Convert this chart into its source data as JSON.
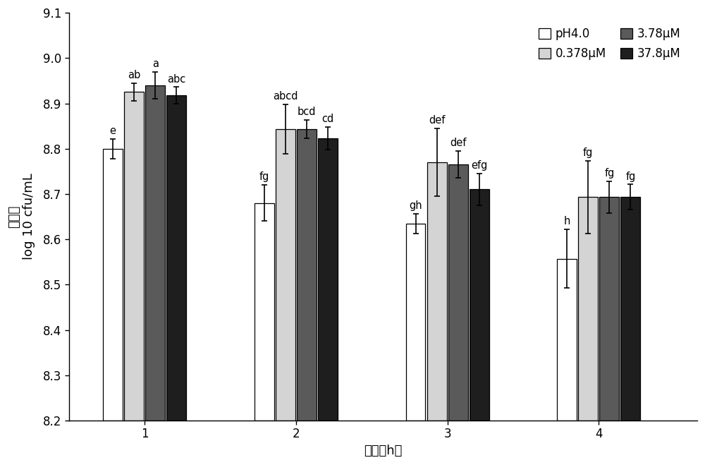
{
  "title": "",
  "xlabel": "时间（h）",
  "ylabel": "存活数\nlog 10 cfu/mL",
  "ylim": [
    8.2,
    9.1
  ],
  "yticks": [
    8.2,
    8.3,
    8.4,
    8.5,
    8.6,
    8.7,
    8.8,
    8.9,
    9.0,
    9.1
  ],
  "xtick_labels": [
    "1",
    "2",
    "3",
    "4"
  ],
  "groups": [
    "pH4.0",
    "0.378μM",
    "3.78μM",
    "37.8μM"
  ],
  "bar_colors": [
    "#ffffff",
    "#d4d4d4",
    "#5a5a5a",
    "#1e1e1e"
  ],
  "bar_edge_colors": [
    "#000000",
    "#000000",
    "#000000",
    "#000000"
  ],
  "bar_width": 0.13,
  "values": [
    [
      8.8,
      8.925,
      8.94,
      8.918
    ],
    [
      8.68,
      8.843,
      8.843,
      8.823
    ],
    [
      8.635,
      8.77,
      8.765,
      8.71
    ],
    [
      8.557,
      8.693,
      8.693,
      8.693
    ]
  ],
  "errors": [
    [
      0.022,
      0.02,
      0.03,
      0.018
    ],
    [
      0.04,
      0.055,
      0.02,
      0.025
    ],
    [
      0.022,
      0.075,
      0.03,
      0.035
    ],
    [
      0.065,
      0.08,
      0.035,
      0.028
    ]
  ],
  "annotations": [
    [
      "e",
      "ab",
      "a",
      "abc"
    ],
    [
      "fg",
      "abcd",
      "bcd",
      "cd"
    ],
    [
      "gh",
      "def",
      "def",
      "efg"
    ],
    [
      "h",
      "fg",
      "fg",
      "fg"
    ]
  ],
  "legend_labels": [
    "pH4.0",
    "0.378μM",
    "3.78μM",
    "37.8μM"
  ],
  "legend_colors": [
    "#ffffff",
    "#d4d4d4",
    "#5a5a5a",
    "#1e1e1e"
  ],
  "background_color": "#ffffff",
  "annotation_fontsize": 10.5,
  "axis_fontsize": 13,
  "tick_fontsize": 12,
  "legend_fontsize": 12,
  "ybaseline": 8.2,
  "xlim": [
    0.5,
    4.65
  ]
}
